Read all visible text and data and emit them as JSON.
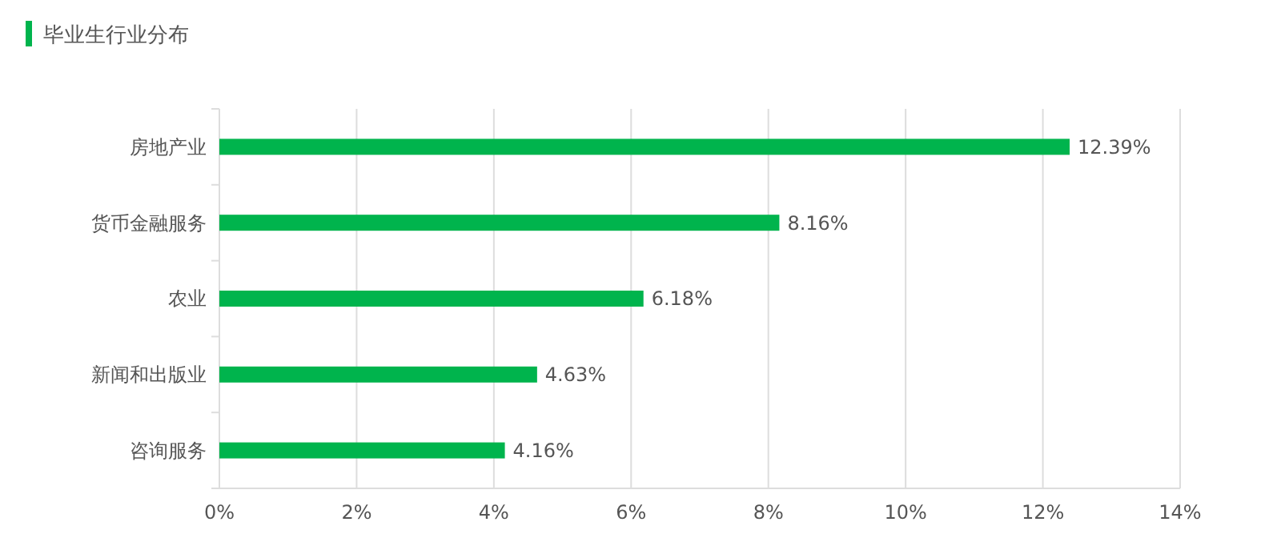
{
  "chart_data": {
    "type": "bar",
    "orientation": "horizontal",
    "title": "毕业生行业分布",
    "categories": [
      "房地产业",
      "货币金融服务",
      "农业",
      "新闻和出版业",
      "咨询服务"
    ],
    "values": [
      12.39,
      8.16,
      6.18,
      4.63,
      4.16
    ],
    "value_labels": [
      "12.39%",
      "8.16%",
      "6.18%",
      "4.63%",
      "4.16%"
    ],
    "color": "#00b44d",
    "xlim": [
      0,
      14
    ],
    "xticks": [
      {
        "value": 0,
        "label": "0%"
      },
      {
        "value": 2,
        "label": "2%"
      },
      {
        "value": 4,
        "label": "4%"
      },
      {
        "value": 6,
        "label": "6%"
      },
      {
        "value": 8,
        "label": "8%"
      },
      {
        "value": 10,
        "label": "10%"
      },
      {
        "value": 12,
        "label": "12%"
      },
      {
        "value": 14,
        "label": "14%"
      }
    ],
    "grid": "x"
  }
}
